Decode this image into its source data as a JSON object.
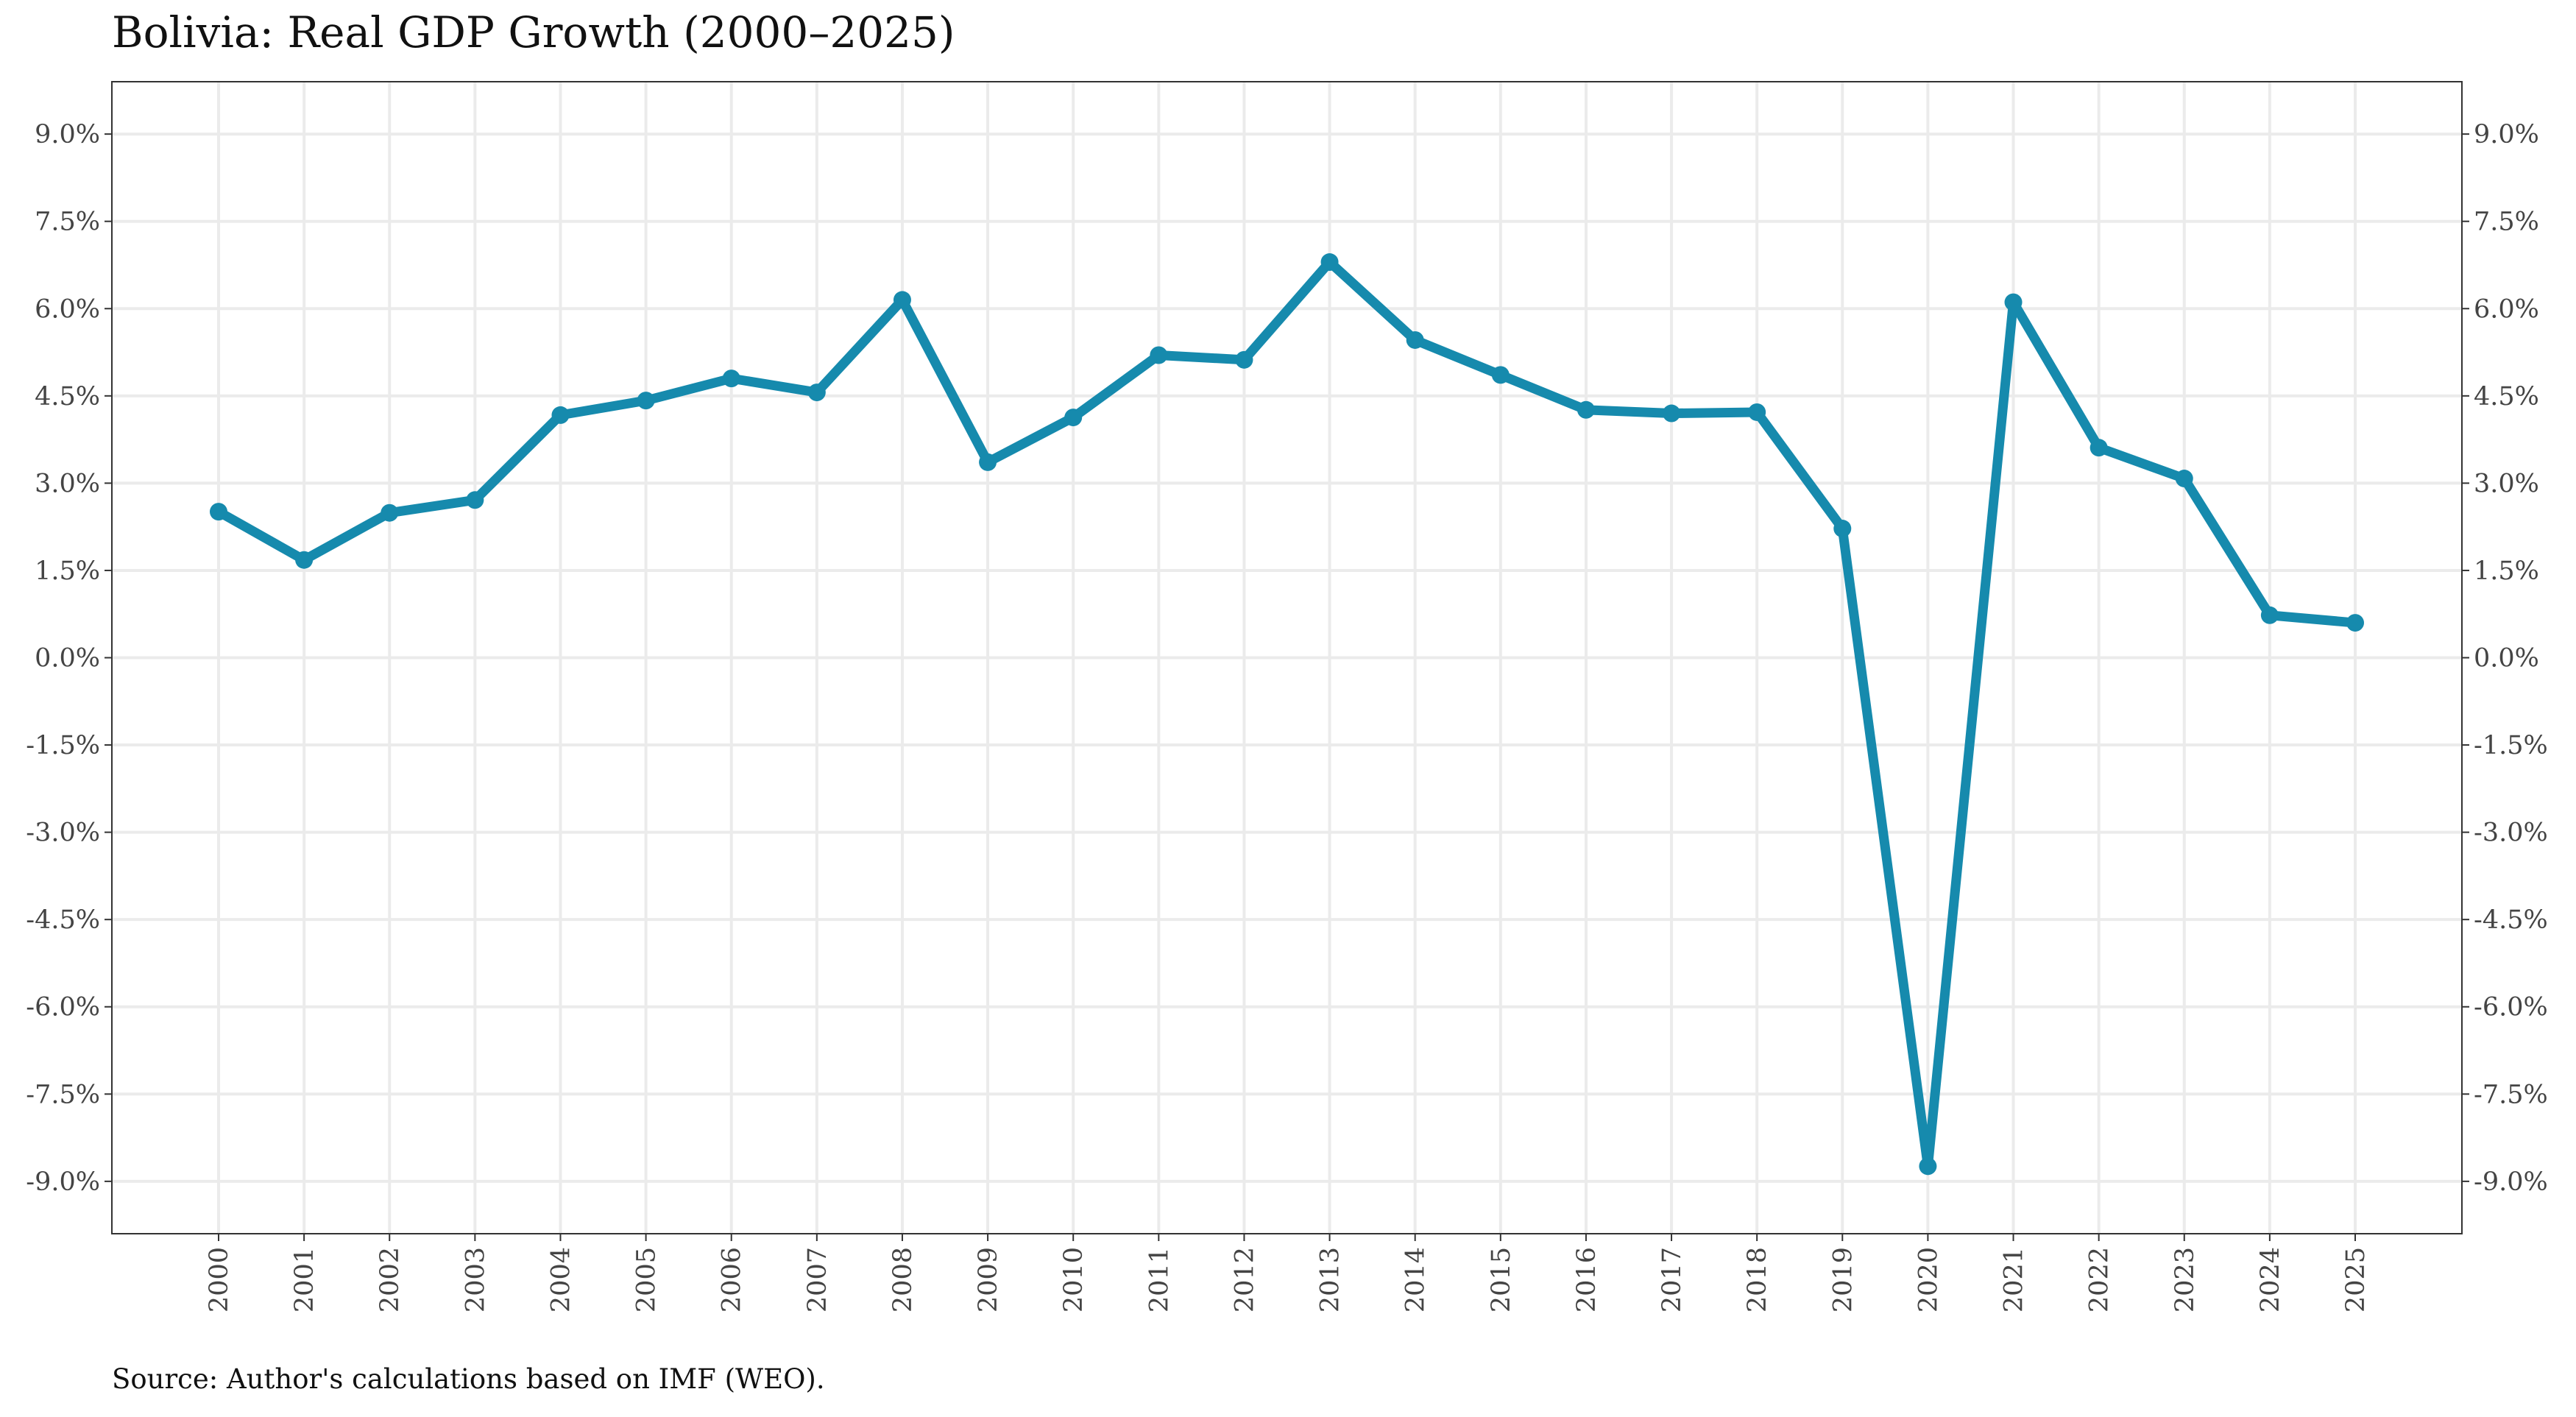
{
  "title": "Bolivia: Real GDP Growth (2000–2025)",
  "source": "Source: Author's calculations based on IMF (WEO).",
  "chart_data": {
    "type": "line",
    "title": "Bolivia: Real GDP Growth (2000–2025)",
    "xlabel": "",
    "ylabel": "",
    "x": [
      2000,
      2001,
      2002,
      2003,
      2004,
      2005,
      2006,
      2007,
      2008,
      2009,
      2010,
      2011,
      2012,
      2013,
      2014,
      2015,
      2016,
      2017,
      2018,
      2019,
      2020,
      2021,
      2022,
      2023,
      2024,
      2025
    ],
    "series": [
      {
        "values": [
          2.51,
          1.68,
          2.49,
          2.71,
          4.17,
          4.42,
          4.8,
          4.56,
          6.15,
          3.36,
          4.13,
          5.2,
          5.12,
          6.8,
          5.46,
          4.86,
          4.26,
          4.2,
          4.22,
          2.22,
          -8.74,
          6.11,
          3.61,
          3.08,
          0.73,
          0.6
        ],
        "color": "#168aad"
      }
    ],
    "ylim": [
      -9.9,
      9.9
    ],
    "yticks": [
      -9.0,
      -7.5,
      -6.0,
      -4.5,
      -3.0,
      -1.5,
      0.0,
      1.5,
      3.0,
      4.5,
      6.0,
      7.5,
      9.0
    ],
    "ytick_labels": [
      "-9.0%",
      "-7.5%",
      "-6.0%",
      "-4.5%",
      "-3.0%",
      "-1.5%",
      "0.0%",
      "1.5%",
      "3.0%",
      "4.5%",
      "6.0%",
      "7.5%",
      "9.0%"
    ],
    "xtick_labels": [
      "2000",
      "2001",
      "2002",
      "2003",
      "2004",
      "2005",
      "2006",
      "2007",
      "2008",
      "2009",
      "2010",
      "2011",
      "2012",
      "2013",
      "2014",
      "2015",
      "2016",
      "2017",
      "2018",
      "2019",
      "2020",
      "2021",
      "2022",
      "2023",
      "2024",
      "2025"
    ],
    "grid": true,
    "legend": "none",
    "secondary_y_axis": "mirrored"
  }
}
